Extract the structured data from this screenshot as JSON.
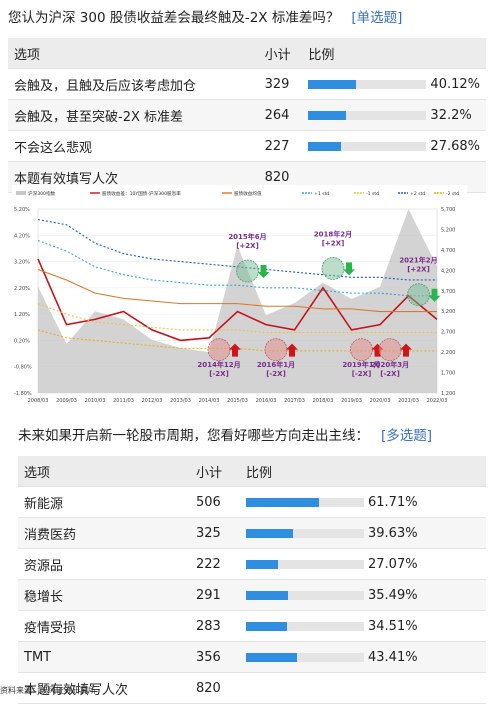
{
  "q1": {
    "title": "您认为沪深 300 股债收益差会最终触及-2X 标准差吗？",
    "tag": "[单选题]",
    "headers": [
      "选项",
      "小计",
      "比例"
    ],
    "rows": [
      {
        "label": "会触及，且触及后应该考虑加仓",
        "count": "329",
        "pct": "40.12%",
        "ratio": 0.4012
      },
      {
        "label": "会触及，甚至突破-2X 标准差",
        "count": "264",
        "pct": "32.2%",
        "ratio": 0.322
      },
      {
        "label": "不会这么悲观",
        "count": "227",
        "pct": "27.68%",
        "ratio": 0.2768
      }
    ],
    "total_label": "本题有效填写人次",
    "total": "820"
  },
  "chart_data": {
    "type": "line",
    "legend": [
      "沪深300指数",
      "股债收益差：10Y国债-沪深300股息率",
      "股债收益均值",
      "+1 std",
      "-1 std",
      "+2 std",
      "-2 std"
    ],
    "x": [
      "2008/03",
      "2009/03",
      "2010/03",
      "2011/03",
      "2012/03",
      "2013/03",
      "2014/03",
      "2015/03",
      "2016/03",
      "2017/03",
      "2018/03",
      "2019/03",
      "2020/03",
      "2021/03",
      "2022/03"
    ],
    "y_left_ticks": [
      "5.20%",
      "4.20%",
      "3.20%",
      "2.20%",
      "1.20%",
      "0.20%",
      "-0.80%",
      "-1.80%"
    ],
    "y_right_ticks": [
      "5,700",
      "5,200",
      "4,700",
      "4,200",
      "3,700",
      "3,200",
      "2,700",
      "2,200",
      "1,700",
      "1,200"
    ],
    "series": [
      {
        "name": "股债收益差：10Y国债-沪深300股息率",
        "color": "#c0141a",
        "values": [
          3.3,
          0.8,
          1.0,
          1.3,
          0.6,
          0.2,
          0.3,
          1.3,
          0.8,
          0.6,
          2.2,
          0.6,
          0.8,
          1.9,
          1.0
        ]
      },
      {
        "name": "股债收益均值",
        "color": "#d9782a",
        "values": [
          2.9,
          2.5,
          2.0,
          1.8,
          1.7,
          1.6,
          1.6,
          1.6,
          1.5,
          1.5,
          1.4,
          1.4,
          1.3,
          1.3,
          1.3
        ]
      },
      {
        "name": "+1 std",
        "color": "#3aa3d8",
        "values": [
          4.0,
          3.6,
          3.0,
          2.7,
          2.5,
          2.4,
          2.3,
          2.3,
          2.2,
          2.2,
          2.1,
          2.0,
          2.0,
          1.9,
          1.9
        ]
      },
      {
        "name": "-1 std",
        "color": "#f0c04a",
        "values": [
          1.6,
          1.2,
          0.9,
          0.8,
          0.7,
          0.6,
          0.6,
          0.6,
          0.5,
          0.5,
          0.5,
          0.5,
          0.5,
          0.5,
          0.5
        ]
      },
      {
        "name": "+2 std",
        "color": "#1f5fb0",
        "values": [
          4.8,
          4.6,
          3.9,
          3.5,
          3.3,
          3.2,
          3.1,
          3.0,
          2.9,
          2.8,
          2.7,
          2.6,
          2.6,
          2.5,
          2.5
        ]
      },
      {
        "name": "-2 std",
        "color": "#e8b020",
        "values": [
          0.6,
          0.3,
          0.2,
          0.1,
          0.0,
          -0.1,
          -0.1,
          -0.1,
          -0.2,
          -0.2,
          -0.2,
          -0.2,
          -0.2,
          -0.2,
          -0.2
        ]
      }
    ],
    "area": {
      "name": "沪深300指数",
      "color": "#c8c8c8",
      "values": [
        3800,
        2400,
        3200,
        3000,
        2500,
        2300,
        2200,
        4800,
        3100,
        3400,
        3900,
        3500,
        3800,
        5700,
        4300
      ]
    },
    "annotations": [
      {
        "text": "2015年6月",
        "sub": "[+2X]",
        "x": "2015/03",
        "y": 3.6
      },
      {
        "text": "2018年2月",
        "sub": "[+2X]",
        "x": "2018/03",
        "y": 3.7
      },
      {
        "text": "2021年2月",
        "sub": "[+2X]",
        "x": "2021/03",
        "y": 2.7
      },
      {
        "text": "2014年12月",
        "sub": "[-2X]",
        "x": "2014/03",
        "y": -0.4
      },
      {
        "text": "2016年1月",
        "sub": "[-2X]",
        "x": "2016/03",
        "y": -0.4
      },
      {
        "text": "2019年1月",
        "sub": "[-2X]",
        "x": "2019/03",
        "y": -0.4
      },
      {
        "text": "2020年3月",
        "sub": "[-2X]",
        "x": "2020/03",
        "y": -0.4
      }
    ],
    "ylim": [
      -1.8,
      5.2
    ]
  },
  "q2": {
    "title": "未来如果开启新一轮股市周期，您看好哪些方向走出主线：",
    "tag": "[多选题]",
    "headers": [
      "选项",
      "小计",
      "比例"
    ],
    "rows": [
      {
        "label": "新能源",
        "count": "506",
        "pct": "61.71%",
        "ratio": 0.6171
      },
      {
        "label": "消费医药",
        "count": "325",
        "pct": "39.63%",
        "ratio": 0.3963
      },
      {
        "label": "资源品",
        "count": "222",
        "pct": "27.07%",
        "ratio": 0.2707
      },
      {
        "label": "稳增长",
        "count": "291",
        "pct": "35.49%",
        "ratio": 0.3549
      },
      {
        "label": "疫情受损",
        "count": "283",
        "pct": "34.51%",
        "ratio": 0.3451
      },
      {
        "label": "TMT",
        "count": "356",
        "pct": "43.41%",
        "ratio": 0.4341
      }
    ],
    "total_label": "本题有效填写人次",
    "total": "820"
  },
  "source": "资料来源：天风证券研究所"
}
